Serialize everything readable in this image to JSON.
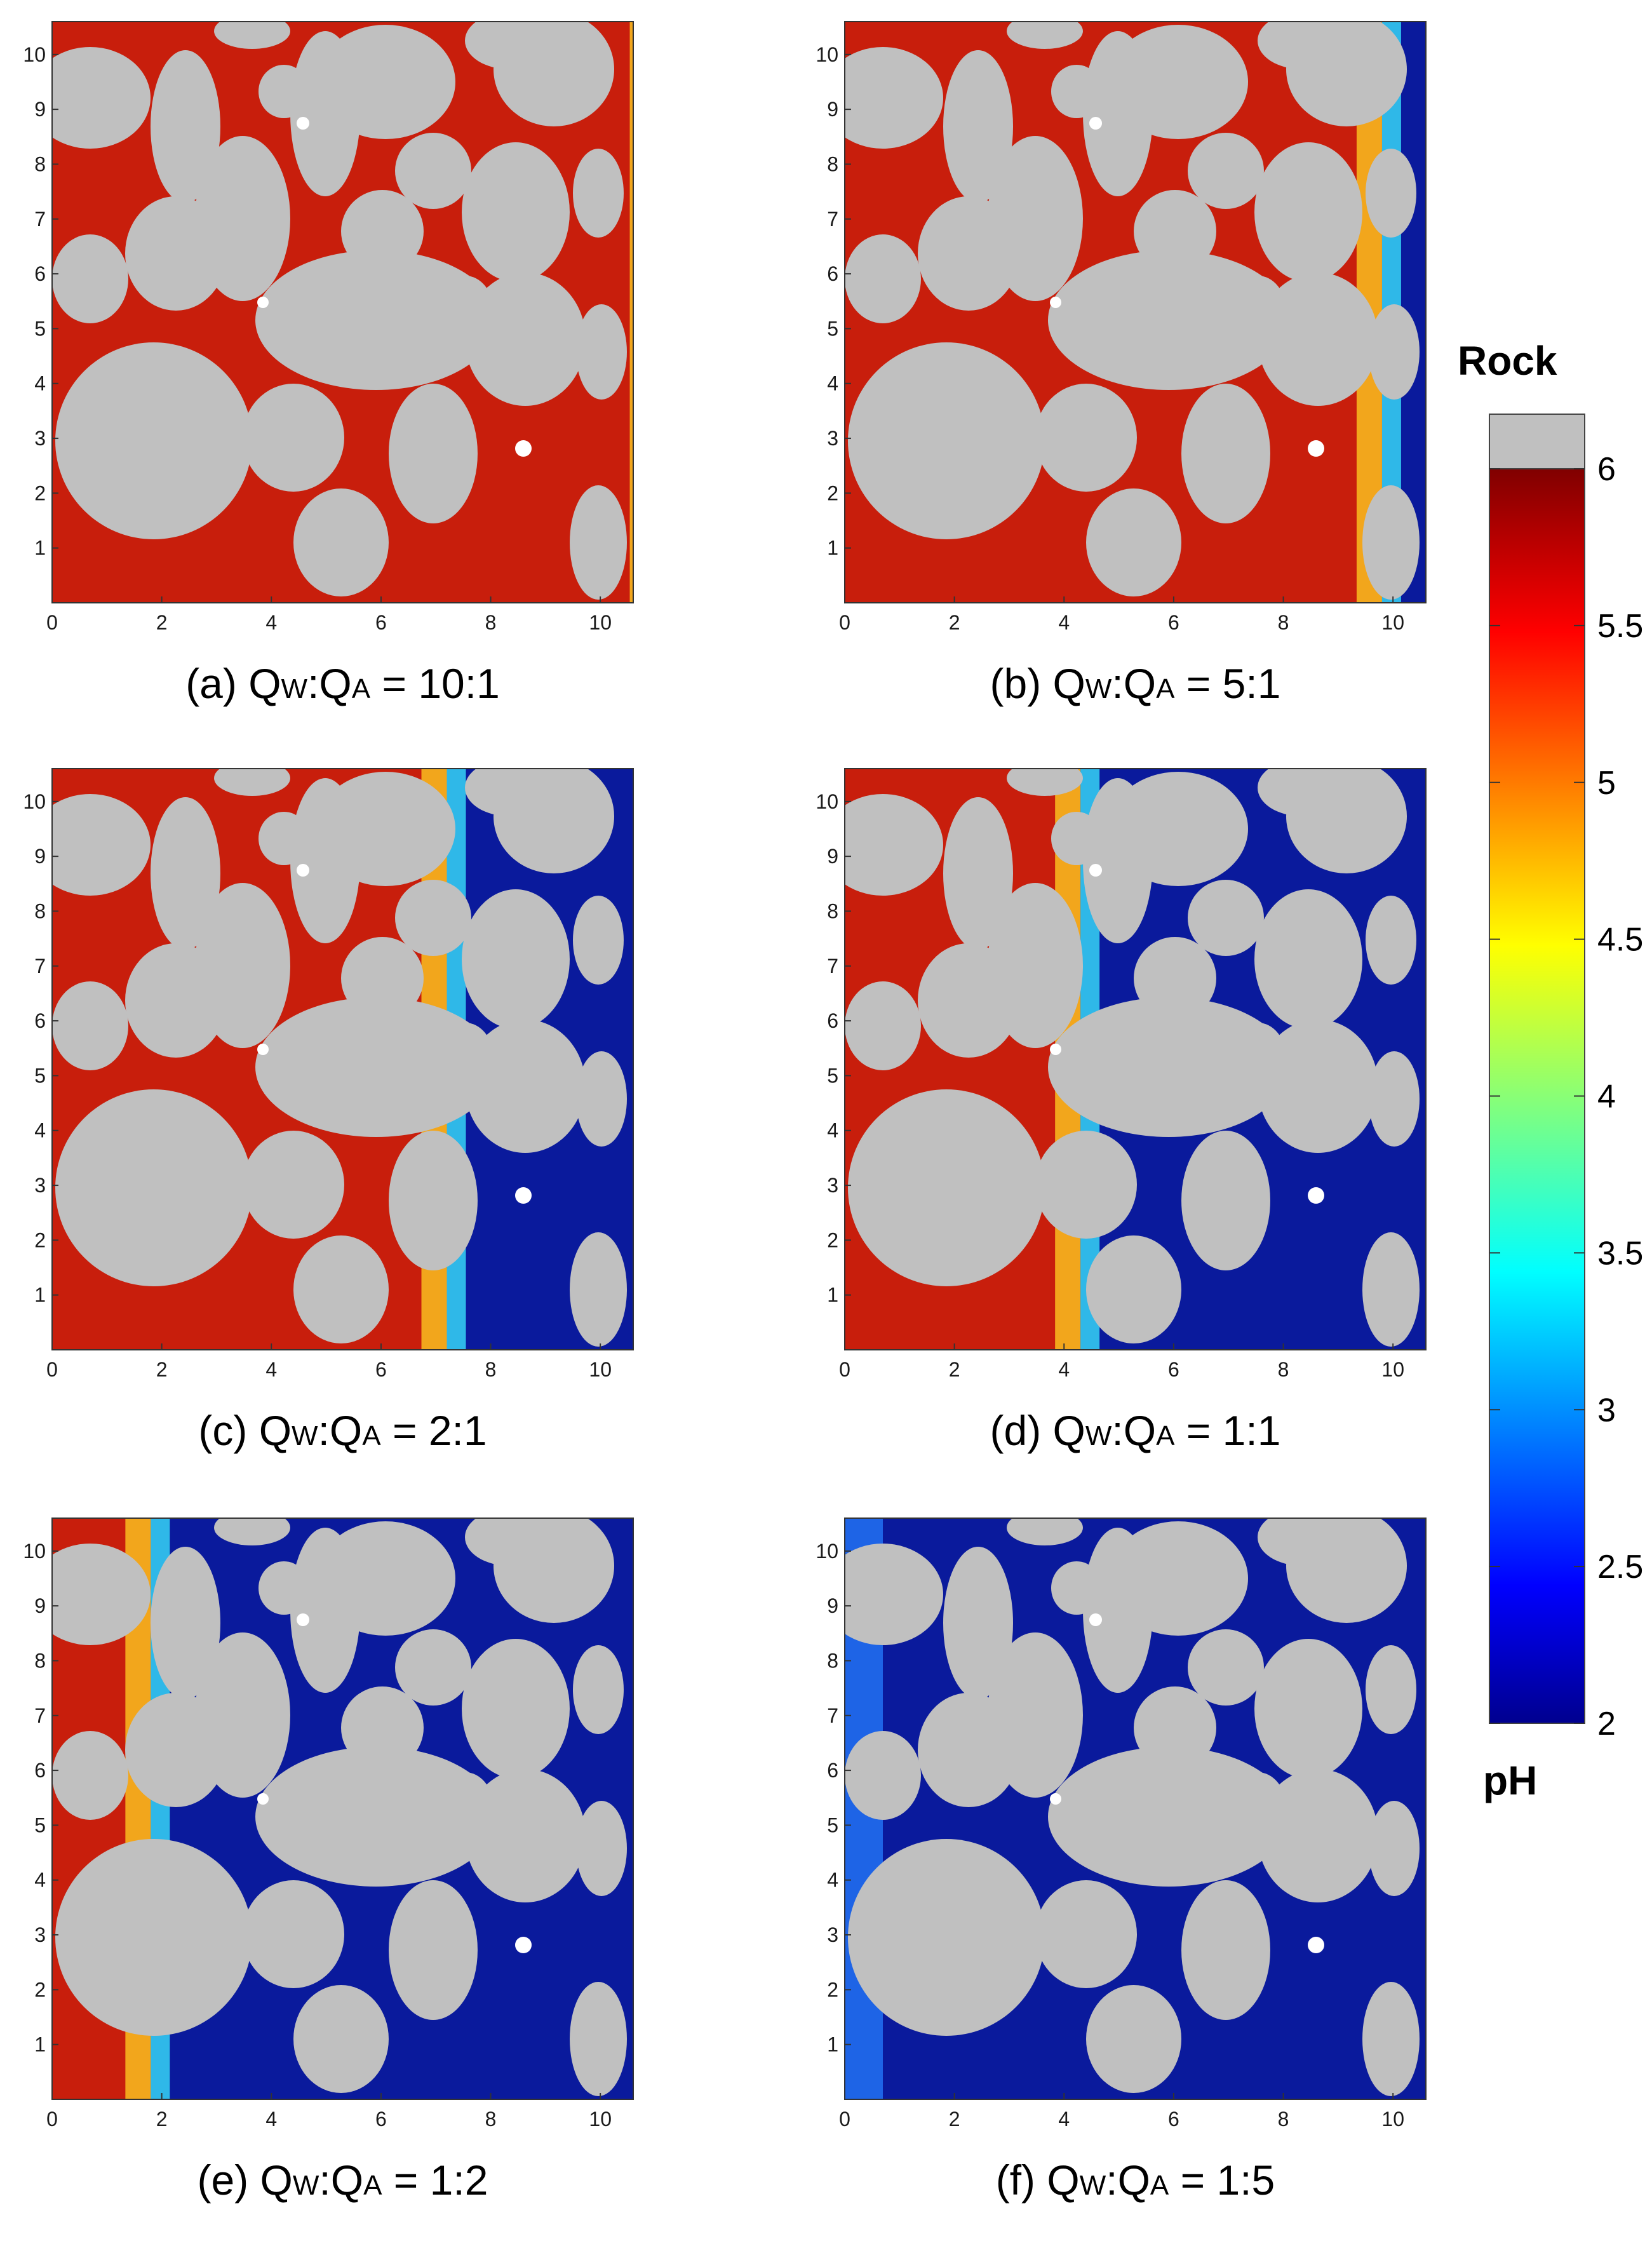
{
  "colors": {
    "rock": "#c0c0c0",
    "ph_high": "#800000",
    "ph_low": "#00008f",
    "jet_stops": [
      "#00008f",
      "#0000ff",
      "#00ffff",
      "#ffff00",
      "#ff0000",
      "#800000"
    ]
  },
  "colorbar": {
    "top_label": "Rock",
    "bottom_label": "pH",
    "ticks": [
      "6",
      "5.5",
      "5",
      "4.5",
      "4",
      "3.5",
      "3",
      "2.5",
      "2"
    ],
    "range": [
      2,
      6
    ]
  },
  "chart_data": [
    {
      "type": "heatmap",
      "panel": "a",
      "caption_prefix": "(a) Q",
      "sub1": "W",
      "mid": ":Q",
      "sub2": "A",
      "caption_suffix": " = 10:1",
      "front_x": 11.0,
      "x_ticks": [
        "0",
        "2",
        "4",
        "6",
        "8",
        "10"
      ],
      "y_ticks": [
        "1",
        "2",
        "3",
        "4",
        "5",
        "6",
        "7",
        "8",
        "9",
        "10"
      ],
      "xlim": [
        0,
        10.6
      ],
      "ylim": [
        0,
        10.6
      ]
    },
    {
      "type": "heatmap",
      "panel": "b",
      "caption_prefix": "(b) Q",
      "sub1": "W",
      "mid": ":Q",
      "sub2": "A",
      "caption_suffix": " = 5:1",
      "front_x": 9.8,
      "x_ticks": [
        "0",
        "2",
        "4",
        "6",
        "8",
        "10"
      ],
      "y_ticks": [
        "1",
        "2",
        "3",
        "4",
        "5",
        "6",
        "7",
        "8",
        "9",
        "10"
      ],
      "xlim": [
        0,
        10.6
      ],
      "ylim": [
        0,
        10.6
      ]
    },
    {
      "type": "heatmap",
      "panel": "c",
      "caption_prefix": "(c) Q",
      "sub1": "W",
      "mid": ":Q",
      "sub2": "A",
      "caption_suffix": " = 2:1",
      "front_x": 7.2,
      "x_ticks": [
        "0",
        "2",
        "4",
        "6",
        "8",
        "10"
      ],
      "y_ticks": [
        "1",
        "2",
        "3",
        "4",
        "5",
        "6",
        "7",
        "8",
        "9",
        "10"
      ],
      "xlim": [
        0,
        10.6
      ],
      "ylim": [
        0,
        10.6
      ]
    },
    {
      "type": "heatmap",
      "panel": "d",
      "caption_prefix": "(d) Q",
      "sub1": "W",
      "mid": ":Q",
      "sub2": "A",
      "caption_suffix": " = 1:1",
      "front_x": 4.3,
      "x_ticks": [
        "0",
        "2",
        "4",
        "6",
        "8",
        "10"
      ],
      "y_ticks": [
        "1",
        "2",
        "3",
        "4",
        "5",
        "6",
        "7",
        "8",
        "9",
        "10"
      ],
      "xlim": [
        0,
        10.6
      ],
      "ylim": [
        0,
        10.6
      ]
    },
    {
      "type": "heatmap",
      "panel": "e",
      "caption_prefix": "(e) Q",
      "sub1": "W",
      "mid": ":Q",
      "sub2": "A",
      "caption_suffix": " = 1:2",
      "front_x": 1.8,
      "x_ticks": [
        "0",
        "2",
        "4",
        "6",
        "8",
        "10"
      ],
      "y_ticks": [
        "1",
        "2",
        "3",
        "4",
        "5",
        "6",
        "7",
        "8",
        "9",
        "10"
      ],
      "xlim": [
        0,
        10.6
      ],
      "ylim": [
        0,
        10.6
      ]
    },
    {
      "type": "heatmap",
      "panel": "f",
      "caption_prefix": "(f) Q",
      "sub1": "W",
      "mid": ":Q",
      "sub2": "A",
      "caption_suffix": " = 1:5",
      "front_x": -0.5,
      "x_ticks": [
        "0",
        "2",
        "4",
        "6",
        "8",
        "10"
      ],
      "y_ticks": [
        "1",
        "2",
        "3",
        "4",
        "5",
        "6",
        "7",
        "8",
        "9",
        "10"
      ],
      "xlim": [
        0,
        10.6
      ],
      "ylim": [
        0,
        10.6
      ]
    }
  ]
}
